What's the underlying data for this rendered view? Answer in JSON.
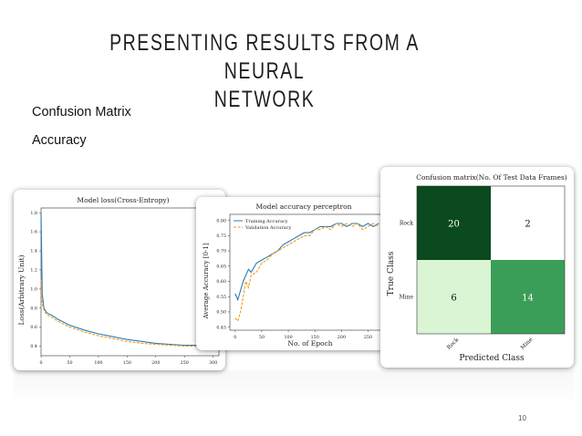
{
  "slide": {
    "title_line1": "PRESENTING RESULTS FROM A NEURAL",
    "title_line2": "NETWORK",
    "bullets": [
      "Confusion Matrix",
      "Accuracy"
    ],
    "page_number": "10"
  },
  "chart_data": [
    {
      "type": "line",
      "title": "Model loss(Cross-Entropy)",
      "ylabel": "Loss(Arbitrary Unit)",
      "xlabel": "",
      "xlim": [
        0,
        310
      ],
      "ylim": [
        0.3,
        1.85
      ],
      "xticks": [
        0,
        50,
        100,
        150,
        200,
        250,
        300
      ],
      "yticks": [
        0.4,
        0.6,
        0.8,
        1.0,
        1.2,
        1.4,
        1.6,
        1.8
      ],
      "ytick_labels": [
        "0.4",
        "0.6",
        "0.8",
        "1.0",
        "1.2",
        "1.4",
        "1.6",
        "1.8"
      ],
      "series": [
        {
          "color": "#2b7bb9",
          "style": "solid",
          "x": [
            0,
            2,
            5,
            10,
            20,
            30,
            50,
            75,
            100,
            125,
            150,
            175,
            200,
            225,
            250,
            275,
            300
          ],
          "y": [
            1.8,
            0.95,
            0.8,
            0.75,
            0.72,
            0.68,
            0.62,
            0.57,
            0.53,
            0.5,
            0.47,
            0.45,
            0.43,
            0.42,
            0.41,
            0.41,
            0.4
          ]
        },
        {
          "color": "#f39c12",
          "style": "dashed",
          "x": [
            0,
            2,
            5,
            10,
            20,
            30,
            50,
            75,
            100,
            125,
            150,
            175,
            200,
            225,
            250,
            275,
            300
          ],
          "y": [
            1.1,
            0.85,
            0.78,
            0.73,
            0.7,
            0.66,
            0.6,
            0.55,
            0.51,
            0.48,
            0.45,
            0.43,
            0.42,
            0.41,
            0.4,
            0.4,
            0.39
          ]
        }
      ]
    },
    {
      "type": "line",
      "title": "Model accuracy perceptron",
      "xlabel": "No. of Epoch",
      "ylabel": "Average Accuracy [0-1]",
      "xlim": [
        -10,
        275
      ],
      "ylim": [
        0.44,
        0.82
      ],
      "xticks": [
        0,
        50,
        100,
        150,
        200,
        250
      ],
      "yticks": [
        0.45,
        0.5,
        0.55,
        0.6,
        0.65,
        0.7,
        0.75,
        0.8
      ],
      "ytick_labels": [
        "0.45",
        "0.50",
        "0.55",
        "0.60",
        "0.65",
        "0.70",
        "0.75",
        "0.80"
      ],
      "legend": "top-left",
      "series": [
        {
          "name": "Training Accuracy",
          "color": "#2b7bb9",
          "style": "solid",
          "x": [
            0,
            5,
            10,
            15,
            20,
            25,
            30,
            40,
            50,
            60,
            70,
            80,
            90,
            100,
            110,
            120,
            130,
            140,
            150,
            160,
            170,
            180,
            190,
            200,
            210,
            220,
            230,
            240,
            250,
            260,
            270
          ],
          "y": [
            0.56,
            0.54,
            0.57,
            0.6,
            0.62,
            0.64,
            0.63,
            0.66,
            0.67,
            0.68,
            0.69,
            0.7,
            0.72,
            0.73,
            0.74,
            0.75,
            0.76,
            0.76,
            0.77,
            0.78,
            0.78,
            0.78,
            0.79,
            0.79,
            0.78,
            0.79,
            0.79,
            0.78,
            0.79,
            0.78,
            0.79
          ]
        },
        {
          "name": "Validation Accuracy",
          "color": "#f39c12",
          "style": "dashed",
          "x": [
            0,
            5,
            10,
            15,
            20,
            25,
            30,
            40,
            50,
            60,
            70,
            80,
            90,
            100,
            110,
            120,
            130,
            140,
            150,
            160,
            170,
            180,
            190,
            200,
            210,
            220,
            230,
            240,
            250,
            260,
            270
          ],
          "y": [
            0.48,
            0.47,
            0.5,
            0.55,
            0.6,
            0.58,
            0.62,
            0.63,
            0.66,
            0.67,
            0.69,
            0.7,
            0.71,
            0.72,
            0.73,
            0.74,
            0.75,
            0.75,
            0.77,
            0.77,
            0.78,
            0.77,
            0.79,
            0.78,
            0.79,
            0.78,
            0.79,
            0.77,
            0.78,
            0.79,
            0.78
          ]
        }
      ]
    },
    {
      "type": "heatmap",
      "title": "Confusion matrix(No. Of Test Data Frames)",
      "xlabel": "Predicted Class",
      "ylabel": "True Class",
      "x_categories": [
        "Rock",
        "Mine"
      ],
      "y_categories": [
        "Rock",
        "Mine"
      ],
      "values": [
        [
          20,
          2
        ],
        [
          6,
          14
        ]
      ],
      "colors": [
        [
          "#0b4a1f",
          "#ffffff"
        ],
        [
          "#d9f5d4",
          "#3a9e58"
        ]
      ],
      "label_colors": [
        [
          "#ffffff",
          "#111111"
        ],
        [
          "#111111",
          "#ffffff"
        ]
      ]
    }
  ]
}
